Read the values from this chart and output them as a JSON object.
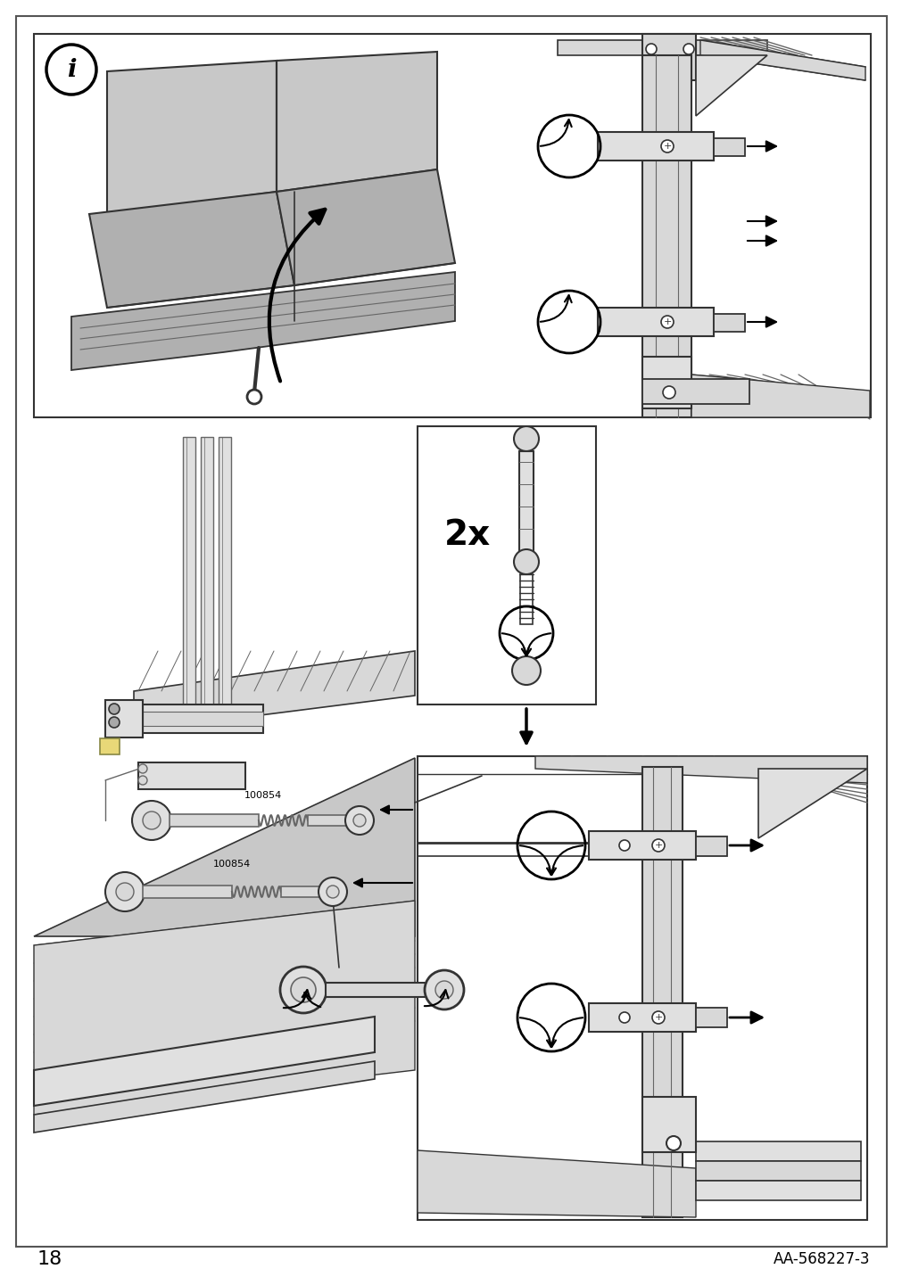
{
  "page_number": "18",
  "catalog_number": "AA-568227-3",
  "background_color": "#ffffff",
  "gray1": "#c8c8c8",
  "gray2": "#b0b0b0",
  "gray3": "#e0e0e0",
  "gray4": "#d8d8d8",
  "gray5": "#a8a8a8",
  "black": "#000000",
  "dark_line": "#333333",
  "mid_line": "#666666",
  "part_number": "100854"
}
